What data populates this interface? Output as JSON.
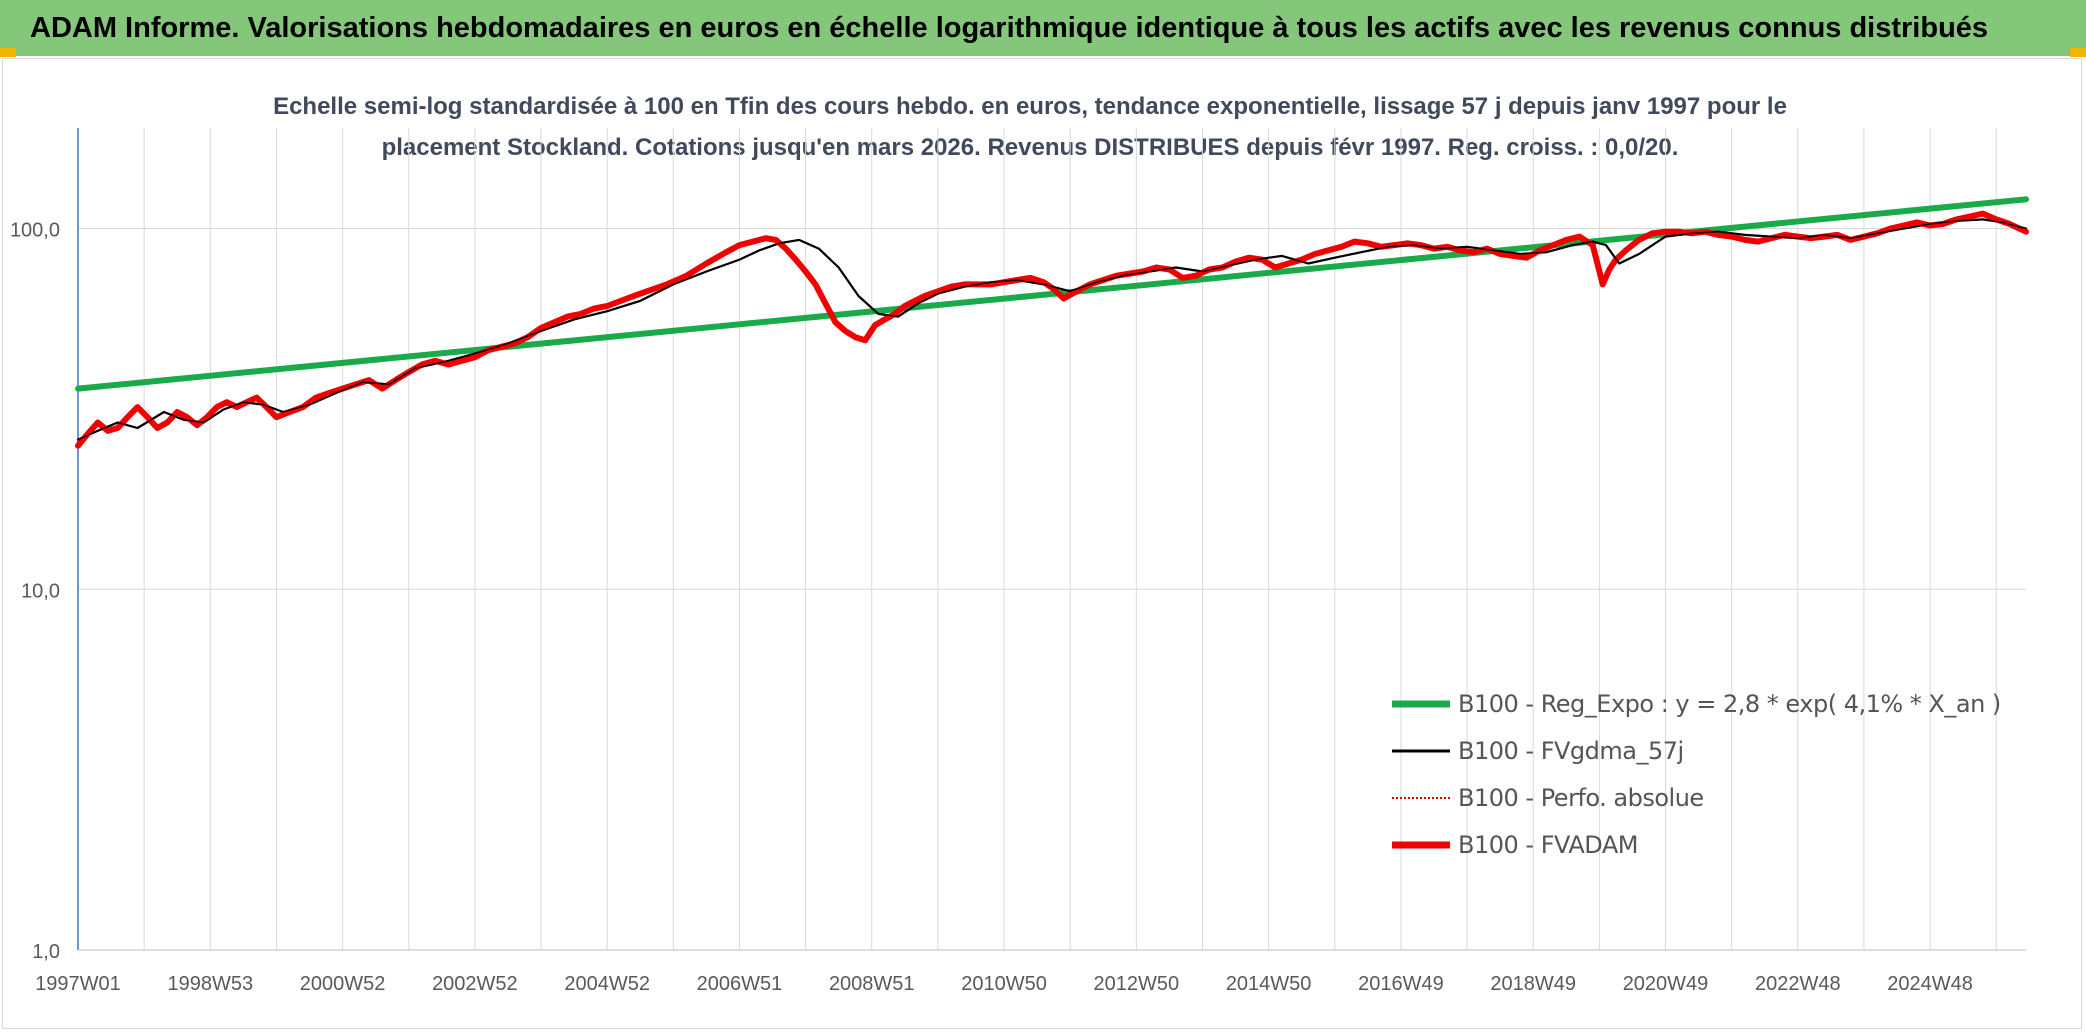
{
  "banner": {
    "title": "ADAM Informe. Valorisations hebdomadaires en euros en échelle logarithmique identique à tous les actifs avec les revenus connus distribués"
  },
  "colors": {
    "banner_bg": "#84c77a",
    "corner_accent": "#f2b400",
    "regression": "#1aaa4a",
    "fvgdma": "#000000",
    "perfo": "#e00000",
    "fvadam": "#f00000",
    "grid": "#d9d9d9",
    "y_axis": "#4472c4"
  },
  "chart_data": {
    "type": "line",
    "title": "Echelle semi-log standardisée à 100 en Tfin des cours hebdo. en euros, tendance exponentielle, lissage 57 j depuis janv 1997 pour le placement Stockland. Cotations jusqu'en mars 2026. Revenus DISTRIBUES depuis févr 1997. Reg. croiss. : 0,0/20.",
    "title_lines": [
      "Echelle semi-log standardisée à 100 en Tfin des cours hebdo. en euros, tendance exponentielle, lissage 57 j depuis janv 1997 pour le",
      "placement Stockland. Cotations jusqu'en mars 2026. Revenus DISTRIBUES depuis févr 1997. Reg. croiss. : 0,0/20."
    ],
    "y_scale": "log",
    "ylim": [
      1,
      190
    ],
    "xlim": [
      1997.0,
      2026.45
    ],
    "y_ticks": [
      {
        "value": 1,
        "label": "1,0"
      },
      {
        "value": 10,
        "label": "10,0"
      },
      {
        "value": 100,
        "label": "100,0"
      }
    ],
    "x_ticks": [
      {
        "x": 1997.0,
        "label": "1997W01"
      },
      {
        "x": 1999.0,
        "label": "1998W53"
      },
      {
        "x": 2001.0,
        "label": "2000W52"
      },
      {
        "x": 2003.0,
        "label": "2002W52"
      },
      {
        "x": 2005.0,
        "label": "2004W52"
      },
      {
        "x": 2007.0,
        "label": "2006W51"
      },
      {
        "x": 2009.0,
        "label": "2008W51"
      },
      {
        "x": 2011.0,
        "label": "2010W50"
      },
      {
        "x": 2013.0,
        "label": "2012W50"
      },
      {
        "x": 2015.0,
        "label": "2014W50"
      },
      {
        "x": 2017.0,
        "label": "2016W49"
      },
      {
        "x": 2019.0,
        "label": "2018W49"
      },
      {
        "x": 2021.0,
        "label": "2020W49"
      },
      {
        "x": 2023.0,
        "label": "2022W48"
      },
      {
        "x": 2025.0,
        "label": "2024W48"
      }
    ],
    "x_minor_gridlines": [
      1998.0,
      2000.0,
      2002.0,
      2004.0,
      2006.0,
      2008.0,
      2010.0,
      2012.0,
      2014.0,
      2016.0,
      2018.0,
      2020.0,
      2022.0,
      2024.0,
      2026.0
    ],
    "grid": true,
    "legend_position": "bottom-right",
    "series": [
      {
        "name": "B100 - Reg_Expo : y = 2,8 * exp( 4,1% *  X_an )",
        "style": "thick-solid",
        "color": "#1aaa4a",
        "x": [
          1997.0,
          2026.45
        ],
        "y": [
          36.0,
          120.5
        ]
      },
      {
        "name": "B100 - FVgdma_57j",
        "style": "thin-solid",
        "color": "#000000",
        "x": [
          1997.0,
          1997.3,
          1997.6,
          1997.9,
          1998.3,
          1998.6,
          1998.9,
          1999.2,
          1999.5,
          1999.8,
          2000.1,
          2000.5,
          2000.9,
          2001.3,
          2001.7,
          2002.1,
          2002.6,
          2003.0,
          2003.5,
          2004.0,
          2004.5,
          2005.0,
          2005.5,
          2006.0,
          2006.5,
          2007.0,
          2007.3,
          2007.6,
          2007.9,
          2008.2,
          2008.5,
          2008.8,
          2009.1,
          2009.4,
          2009.7,
          2010.0,
          2010.4,
          2010.8,
          2011.2,
          2011.6,
          2012.0,
          2012.4,
          2012.8,
          2013.2,
          2013.6,
          2014.0,
          2014.4,
          2014.8,
          2015.2,
          2015.6,
          2016.0,
          2016.4,
          2016.8,
          2017.2,
          2017.6,
          2018.0,
          2018.4,
          2018.8,
          2019.2,
          2019.6,
          2019.9,
          2020.1,
          2020.3,
          2020.6,
          2021.0,
          2021.4,
          2021.8,
          2022.2,
          2022.6,
          2023.0,
          2023.4,
          2023.8,
          2024.2,
          2024.6,
          2025.0,
          2025.4,
          2025.8,
          2026.1,
          2026.45
        ],
        "y": [
          26,
          27.5,
          29,
          28,
          31,
          29.5,
          29,
          31.5,
          33,
          32.5,
          31,
          32.5,
          35,
          37.5,
          37,
          41,
          43,
          45,
          48,
          52,
          56,
          59,
          63,
          70,
          76,
          82,
          87,
          91,
          93,
          88,
          78,
          65,
          58,
          57,
          62,
          66,
          69,
          71,
          72,
          70,
          67,
          71,
          74,
          76,
          78,
          76,
          79,
          82,
          84,
          80,
          83,
          86,
          89,
          90,
          88,
          89,
          87,
          85,
          86,
          90,
          92,
          90,
          80,
          85,
          95,
          97,
          98,
          96,
          95,
          94,
          96,
          94,
          97,
          100,
          103,
          105,
          106,
          104,
          100
        ]
      },
      {
        "name": "B100 - Perfo. absolue",
        "style": "dotted",
        "color": "#e00000",
        "x": [],
        "y": []
      },
      {
        "name": "B100 - FVADAM",
        "style": "thick-solid",
        "color": "#f00000",
        "x": [
          1997.0,
          1997.15,
          1997.3,
          1997.45,
          1997.6,
          1997.75,
          1997.9,
          1998.05,
          1998.2,
          1998.35,
          1998.5,
          1998.65,
          1998.8,
          1998.95,
          1999.1,
          1999.25,
          1999.4,
          1999.55,
          1999.7,
          1999.85,
          2000.0,
          2000.2,
          2000.4,
          2000.6,
          2000.8,
          2001.0,
          2001.2,
          2001.4,
          2001.6,
          2001.8,
          2002.0,
          2002.2,
          2002.4,
          2002.6,
          2002.8,
          2003.0,
          2003.2,
          2003.4,
          2003.6,
          2003.8,
          2004.0,
          2004.2,
          2004.4,
          2004.6,
          2004.8,
          2005.0,
          2005.3,
          2005.6,
          2005.9,
          2006.2,
          2006.5,
          2006.8,
          2007.0,
          2007.2,
          2007.4,
          2007.55,
          2007.7,
          2007.85,
          2008.0,
          2008.15,
          2008.3,
          2008.45,
          2008.6,
          2008.75,
          2008.9,
          2009.05,
          2009.2,
          2009.35,
          2009.5,
          2009.65,
          2009.8,
          2010.0,
          2010.2,
          2010.4,
          2010.6,
          2010.8,
          2011.0,
          2011.2,
          2011.4,
          2011.6,
          2011.75,
          2011.9,
          2012.1,
          2012.3,
          2012.5,
          2012.7,
          2012.9,
          2013.1,
          2013.3,
          2013.5,
          2013.7,
          2013.9,
          2014.1,
          2014.3,
          2014.5,
          2014.7,
          2014.9,
          2015.1,
          2015.3,
          2015.5,
          2015.7,
          2015.9,
          2016.1,
          2016.3,
          2016.5,
          2016.7,
          2016.9,
          2017.1,
          2017.3,
          2017.5,
          2017.7,
          2017.9,
          2018.1,
          2018.3,
          2018.5,
          2018.7,
          2018.9,
          2019.1,
          2019.3,
          2019.5,
          2019.7,
          2019.9,
          2020.05,
          2020.15,
          2020.25,
          2020.4,
          2020.6,
          2020.8,
          2021.0,
          2021.2,
          2021.4,
          2021.6,
          2021.8,
          2022.0,
          2022.2,
          2022.4,
          2022.6,
          2022.8,
          2023.0,
          2023.2,
          2023.4,
          2023.6,
          2023.8,
          2024.0,
          2024.2,
          2024.4,
          2024.6,
          2024.8,
          2025.0,
          2025.2,
          2025.4,
          2025.6,
          2025.8,
          2026.0,
          2026.2,
          2026.45
        ],
        "y": [
          25,
          27,
          29,
          27.5,
          28,
          30,
          32,
          30,
          28,
          29,
          31,
          30,
          28.5,
          30,
          32,
          33,
          32,
          33,
          34,
          32,
          30,
          31,
          32,
          34,
          35,
          36,
          37,
          38,
          36,
          38,
          40,
          42,
          43,
          42,
          43,
          44,
          46,
          47,
          48,
          50,
          53,
          55,
          57,
          58,
          60,
          61,
          64,
          67,
          70,
          74,
          80,
          86,
          90,
          92,
          94,
          93,
          88,
          82,
          76,
          70,
          62,
          55,
          52,
          50,
          49,
          54,
          56,
          58,
          61,
          63,
          65,
          67,
          69,
          70,
          70,
          70,
          71,
          72,
          73,
          71,
          68,
          64,
          67,
          70,
          72,
          74,
          75,
          76,
          78,
          77,
          73,
          74,
          77,
          78,
          81,
          83,
          82,
          78,
          80,
          82,
          85,
          87,
          89,
          92,
          91,
          89,
          90,
          91,
          90,
          88,
          89,
          87,
          86,
          88,
          85,
          84,
          83,
          87,
          90,
          93,
          95,
          90,
          70,
          77,
          82,
          87,
          93,
          97,
          98,
          98,
          97,
          98,
          96,
          95,
          93,
          92,
          94,
          96,
          95,
          94,
          95,
          96,
          93,
          95,
          97,
          100,
          102,
          104,
          102,
          103,
          106,
          108,
          110,
          106,
          103,
          98
        ]
      }
    ]
  }
}
